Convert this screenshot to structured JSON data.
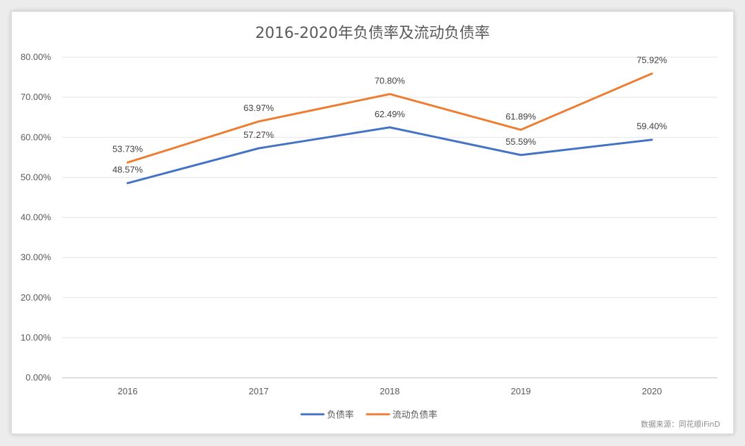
{
  "chart_data": {
    "type": "line",
    "title": "2016-2020年负债率及流动负债率",
    "categories": [
      "2016",
      "2017",
      "2018",
      "2019",
      "2020"
    ],
    "ylim": [
      0,
      80
    ],
    "yticks": [
      0,
      10,
      20,
      30,
      40,
      50,
      60,
      70,
      80
    ],
    "ytick_labels": [
      "0.00%",
      "10.00%",
      "20.00%",
      "30.00%",
      "40.00%",
      "50.00%",
      "60.00%",
      "70.00%",
      "80.00%"
    ],
    "grid": true,
    "legend_position": "bottom",
    "series": [
      {
        "name": "负债率",
        "color": "#4472c4",
        "values": [
          48.57,
          57.27,
          62.49,
          55.59,
          59.4
        ],
        "labels": [
          "48.57%",
          "57.27%",
          "62.49%",
          "55.59%",
          "59.40%"
        ]
      },
      {
        "name": "流动负债率",
        "color": "#ed7d31",
        "values": [
          53.73,
          63.97,
          70.8,
          61.89,
          75.92
        ],
        "labels": [
          "53.73%",
          "63.97%",
          "70.80%",
          "61.89%",
          "75.92%"
        ]
      }
    ],
    "source_note": "数据来源：同花顺iFinD"
  }
}
